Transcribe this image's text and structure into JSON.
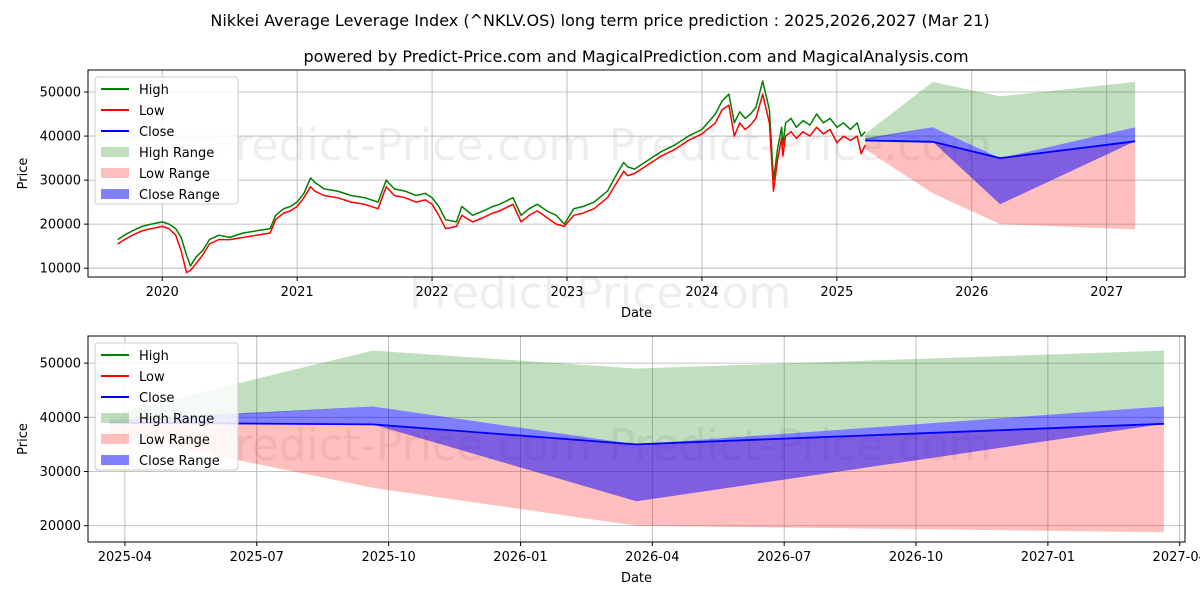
{
  "title": "Nikkei Average Leverage Index (^NKLV.OS) long term price prediction : 2025,2026,2027 (Mar 21)",
  "subtitle": "powered by Predict-Price.com and MagicalPrediction.com and MagicalAnalysis.com",
  "watermark": "Predict-Price.com",
  "colors": {
    "high": "#008000",
    "low": "#ff0000",
    "close": "#0000ff",
    "high_range": "#008000",
    "low_range": "#ff0000",
    "close_range": "#0000ff"
  },
  "legend": [
    "High",
    "Low",
    "Close",
    "High Range",
    "Low Range",
    "Close Range"
  ],
  "chart_data": [
    {
      "type": "line",
      "panel": "history-and-forecast",
      "xlabel": "Date",
      "ylabel": "Price",
      "xlim": [
        2019.45,
        2027.58
      ],
      "ylim": [
        8000,
        55000
      ],
      "xticks": [
        2020,
        2021,
        2022,
        2023,
        2024,
        2025,
        2026,
        2027
      ],
      "xtick_labels": [
        "2020",
        "2021",
        "2022",
        "2023",
        "2024",
        "2025",
        "2026",
        "2027"
      ],
      "yticks": [
        10000,
        20000,
        30000,
        40000,
        50000
      ],
      "ytick_labels": [
        "10000",
        "20000",
        "30000",
        "40000",
        "50000"
      ],
      "grid": true,
      "legend_position": "top-left",
      "history": {
        "x": [
          2019.67,
          2019.72,
          2019.78,
          2019.85,
          2019.92,
          2020.0,
          2020.05,
          2020.1,
          2020.14,
          2020.18,
          2020.21,
          2020.25,
          2020.3,
          2020.35,
          2020.42,
          2020.5,
          2020.6,
          2020.7,
          2020.8,
          2020.84,
          2020.9,
          2020.95,
          2021.0,
          2021.05,
          2021.1,
          2021.13,
          2021.2,
          2021.3,
          2021.4,
          2021.5,
          2021.6,
          2021.66,
          2021.72,
          2021.8,
          2021.88,
          2021.95,
          2022.0,
          2022.05,
          2022.1,
          2022.18,
          2022.22,
          2022.3,
          2022.38,
          2022.45,
          2022.5,
          2022.6,
          2022.66,
          2022.72,
          2022.78,
          2022.85,
          2022.92,
          2022.98,
          2023.05,
          2023.12,
          2023.2,
          2023.3,
          2023.38,
          2023.42,
          2023.45,
          2023.5,
          2023.6,
          2023.7,
          2023.8,
          2023.9,
          2024.0,
          2024.1,
          2024.15,
          2024.2,
          2024.24,
          2024.28,
          2024.32,
          2024.36,
          2024.4,
          2024.45,
          2024.5,
          2024.53,
          2024.56,
          2024.59,
          2024.6,
          2024.62,
          2024.66,
          2024.7,
          2024.75,
          2024.8,
          2024.85,
          2024.9,
          2024.95,
          2025.0,
          2025.05,
          2025.1,
          2025.15,
          2025.18,
          2025.21
        ],
        "high": [
          16500,
          17500,
          18500,
          19500,
          20000,
          20500,
          20000,
          19000,
          17000,
          13000,
          10500,
          12500,
          14000,
          16500,
          17500,
          17000,
          18000,
          18500,
          19000,
          22000,
          23500,
          24000,
          25000,
          27000,
          30500,
          29500,
          28000,
          27500,
          26500,
          26000,
          25000,
          30000,
          28000,
          27500,
          26500,
          27000,
          26000,
          24000,
          21000,
          20500,
          24000,
          22000,
          23000,
          24000,
          24500,
          26000,
          22000,
          23500,
          24500,
          23000,
          22000,
          20000,
          23500,
          24000,
          25000,
          27500,
          32000,
          34000,
          33000,
          32500,
          34500,
          36500,
          38000,
          40000,
          41500,
          45000,
          48000,
          49500,
          43000,
          45500,
          44000,
          45000,
          46500,
          52500,
          46000,
          30000,
          37000,
          42000,
          38000,
          43000,
          44000,
          42000,
          43500,
          42500,
          45000,
          43000,
          44000,
          42000,
          43000,
          41500,
          43000,
          40000,
          41000
        ],
        "low": [
          15500,
          16500,
          17500,
          18500,
          19000,
          19500,
          19000,
          17500,
          14000,
          9000,
          9500,
          11000,
          13000,
          15500,
          16500,
          16500,
          17000,
          17500,
          18000,
          21000,
          22500,
          23000,
          24000,
          26000,
          28500,
          27500,
          26500,
          26000,
          25000,
          24500,
          23500,
          28500,
          26500,
          26000,
          25000,
          25500,
          24500,
          22000,
          19000,
          19500,
          22000,
          20500,
          21500,
          22500,
          23000,
          24500,
          20500,
          22000,
          23000,
          21500,
          20000,
          19500,
          22000,
          22500,
          23500,
          26000,
          30000,
          32000,
          31000,
          31500,
          33500,
          35500,
          37000,
          39000,
          40500,
          43000,
          46000,
          47000,
          40000,
          43000,
          41500,
          42500,
          44000,
          49500,
          43000,
          27500,
          34500,
          39500,
          35500,
          40000,
          41000,
          39500,
          41000,
          40000,
          42000,
          40500,
          41500,
          38500,
          40000,
          39000,
          40000,
          36000,
          38000
        ]
      },
      "forecast": {
        "x": [
          2025.21,
          2025.71,
          2026.21,
          2027.21
        ],
        "close": [
          39000,
          38700,
          35000,
          38800
        ],
        "close_upper": [
          39500,
          42000,
          35000,
          42000
        ],
        "close_lower": [
          39000,
          38700,
          24500,
          38800
        ],
        "high_upper": [
          40500,
          52300,
          49000,
          52300
        ],
        "high_lower": [
          39000,
          42000,
          35000,
          42000
        ],
        "low_upper": [
          39000,
          38700,
          35000,
          38800
        ],
        "low_lower": [
          37000,
          27000,
          20000,
          18800
        ]
      }
    },
    {
      "type": "line",
      "panel": "forecast-zoom",
      "xlabel": "Date",
      "ylabel": "Price",
      "xlim": [
        2025.18,
        2027.26
      ],
      "ylim": [
        17000,
        55000
      ],
      "xticks": [
        2025.25,
        2025.5,
        2025.75,
        2026.0,
        2026.25,
        2026.5,
        2026.75,
        2027.0,
        2027.25
      ],
      "xtick_labels": [
        "2025-04",
        "2025-07",
        "2025-10",
        "2026-01",
        "2026-04",
        "2026-07",
        "2026-10",
        "2027-01",
        "2027-04"
      ],
      "yticks": [
        20000,
        30000,
        40000,
        50000
      ],
      "ytick_labels": [
        "20000",
        "30000",
        "40000",
        "50000"
      ],
      "grid": true,
      "legend_position": "top-left",
      "forecast": {
        "x": [
          2025.22,
          2025.72,
          2026.22,
          2027.22
        ],
        "close": [
          39000,
          38700,
          35000,
          38800
        ],
        "close_upper": [
          39500,
          42000,
          35000,
          42000
        ],
        "close_lower": [
          39000,
          38700,
          24500,
          38800
        ],
        "high_upper": [
          40500,
          52300,
          49000,
          52300
        ],
        "high_lower": [
          39000,
          42000,
          35000,
          42000
        ],
        "low_upper": [
          39000,
          38700,
          35000,
          38800
        ],
        "low_lower": [
          37000,
          27000,
          20000,
          18800
        ]
      }
    }
  ]
}
